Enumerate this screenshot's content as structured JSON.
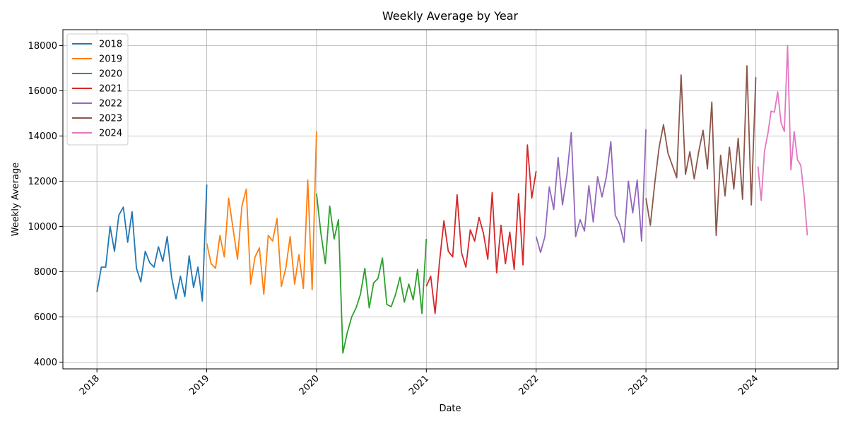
{
  "chart_data": {
    "type": "line",
    "title": "Weekly Average by Year",
    "xlabel": "Date",
    "ylabel": "Weekly Average",
    "xlim": [
      2017.69,
      2024.75
    ],
    "ylim": [
      3700,
      18700
    ],
    "grid": true,
    "legend_position": "top-left",
    "x_ticks": [
      {
        "value": 2018,
        "label": "2018"
      },
      {
        "value": 2019,
        "label": "2019"
      },
      {
        "value": 2020,
        "label": "2020"
      },
      {
        "value": 2021,
        "label": "2021"
      },
      {
        "value": 2022,
        "label": "2022"
      },
      {
        "value": 2023,
        "label": "2023"
      },
      {
        "value": 2024,
        "label": "2024"
      }
    ],
    "y_ticks": [
      {
        "value": 4000,
        "label": "4000"
      },
      {
        "value": 6000,
        "label": "6000"
      },
      {
        "value": 8000,
        "label": "8000"
      },
      {
        "value": 10000,
        "label": "10000"
      },
      {
        "value": 12000,
        "label": "12000"
      },
      {
        "value": 14000,
        "label": "14000"
      },
      {
        "value": 16000,
        "label": "16000"
      },
      {
        "value": 18000,
        "label": "18000"
      }
    ],
    "series": [
      {
        "name": "2018",
        "color": "#1f77b4",
        "x": [
          2018.0,
          2018.04,
          2018.08,
          2018.12,
          2018.16,
          2018.2,
          2018.24,
          2018.28,
          2018.32,
          2018.36,
          2018.4,
          2018.44,
          2018.48,
          2018.52,
          2018.56,
          2018.6,
          2018.64,
          2018.68,
          2018.72,
          2018.76,
          2018.8,
          2018.84,
          2018.88,
          2018.92,
          2018.96,
          2019.0
        ],
        "y": [
          7100,
          8200,
          8200,
          10000,
          8900,
          10500,
          10850,
          9300,
          10650,
          8150,
          7550,
          8900,
          8400,
          8200,
          9100,
          8450,
          9550,
          7750,
          6800,
          7800,
          6900,
          8700,
          7300,
          8200,
          6700,
          11850
        ]
      },
      {
        "name": "2019",
        "color": "#ff7f0e",
        "x": [
          2019.0,
          2019.04,
          2019.08,
          2019.12,
          2019.16,
          2019.2,
          2019.24,
          2019.28,
          2019.32,
          2019.36,
          2019.4,
          2019.44,
          2019.48,
          2019.52,
          2019.56,
          2019.6,
          2019.64,
          2019.68,
          2019.72,
          2019.76,
          2019.8,
          2019.84,
          2019.88,
          2019.92,
          2019.96,
          2020.0
        ],
        "y": [
          9250,
          8350,
          8150,
          9600,
          8650,
          11250,
          9900,
          8550,
          10900,
          11650,
          7450,
          8650,
          9050,
          7000,
          9600,
          9350,
          10350,
          7350,
          8150,
          9550,
          7450,
          8750,
          7250,
          12050,
          7200,
          14200
        ]
      },
      {
        "name": "2020",
        "color": "#2ca02c",
        "x": [
          2020.0,
          2020.04,
          2020.08,
          2020.12,
          2020.16,
          2020.2,
          2020.24,
          2020.28,
          2020.32,
          2020.36,
          2020.4,
          2020.44,
          2020.48,
          2020.52,
          2020.56,
          2020.6,
          2020.64,
          2020.68,
          2020.72,
          2020.76,
          2020.8,
          2020.84,
          2020.88,
          2020.92,
          2020.96,
          2021.0
        ],
        "y": [
          11450,
          9700,
          8350,
          10900,
          9450,
          10300,
          4400,
          5300,
          6000,
          6400,
          7000,
          8150,
          6400,
          7500,
          7700,
          8600,
          6550,
          6450,
          7000,
          7750,
          6650,
          7450,
          6750,
          8100,
          6150,
          9450
        ]
      },
      {
        "name": "2021",
        "color": "#d62728",
        "x": [
          2021.0,
          2021.04,
          2021.08,
          2021.12,
          2021.16,
          2021.2,
          2021.24,
          2021.28,
          2021.32,
          2021.36,
          2021.4,
          2021.44,
          2021.48,
          2021.52,
          2021.56,
          2021.6,
          2021.64,
          2021.68,
          2021.72,
          2021.76,
          2021.8,
          2021.84,
          2021.88,
          2021.92,
          2021.96,
          2022.0
        ],
        "y": [
          7350,
          7800,
          6150,
          8450,
          10250,
          8900,
          8650,
          11400,
          8850,
          8200,
          9850,
          9350,
          10400,
          9700,
          8550,
          11500,
          7950,
          10050,
          8350,
          9750,
          8100,
          11450,
          8300,
          13600,
          11250,
          12450
        ]
      },
      {
        "name": "2022",
        "color": "#9467bd",
        "x": [
          2022.0,
          2022.04,
          2022.08,
          2022.12,
          2022.16,
          2022.2,
          2022.24,
          2022.28,
          2022.32,
          2022.36,
          2022.4,
          2022.44,
          2022.48,
          2022.52,
          2022.56,
          2022.6,
          2022.64,
          2022.68,
          2022.72,
          2022.76,
          2022.8,
          2022.84,
          2022.88,
          2022.92,
          2022.96,
          2023.0
        ],
        "y": [
          9550,
          8850,
          9550,
          11750,
          10750,
          13050,
          10950,
          12250,
          14150,
          9550,
          10300,
          9800,
          11800,
          10200,
          12200,
          11300,
          12200,
          13750,
          10500,
          10100,
          9300,
          12000,
          10600,
          12050,
          9350,
          14300
        ]
      },
      {
        "name": "2023",
        "color": "#8c564b",
        "x": [
          2023.0,
          2023.04,
          2023.08,
          2023.12,
          2023.16,
          2023.2,
          2023.24,
          2023.28,
          2023.32,
          2023.36,
          2023.4,
          2023.44,
          2023.48,
          2023.52,
          2023.56,
          2023.6,
          2023.64,
          2023.68,
          2023.72,
          2023.76,
          2023.8,
          2023.84,
          2023.88,
          2023.92,
          2023.96,
          2024.0
        ],
        "y": [
          11250,
          10050,
          11900,
          13500,
          14500,
          13250,
          12700,
          12150,
          16700,
          12300,
          13300,
          12100,
          13300,
          14250,
          12550,
          15500,
          9600,
          13150,
          11350,
          13500,
          11650,
          13900,
          11200,
          17100,
          10950,
          16600
        ]
      },
      {
        "name": "2024",
        "color": "#e377c2",
        "x": [
          2024.02,
          2024.05,
          2024.08,
          2024.11,
          2024.14,
          2024.17,
          2024.2,
          2024.23,
          2024.26,
          2024.29,
          2024.32,
          2024.35,
          2024.38,
          2024.41,
          2024.44,
          2024.47
        ],
        "y": [
          12650,
          11150,
          13350,
          14100,
          15100,
          15050,
          15950,
          14600,
          14200,
          18000,
          12500,
          14200,
          12950,
          12700,
          11400,
          9600
        ]
      }
    ]
  }
}
